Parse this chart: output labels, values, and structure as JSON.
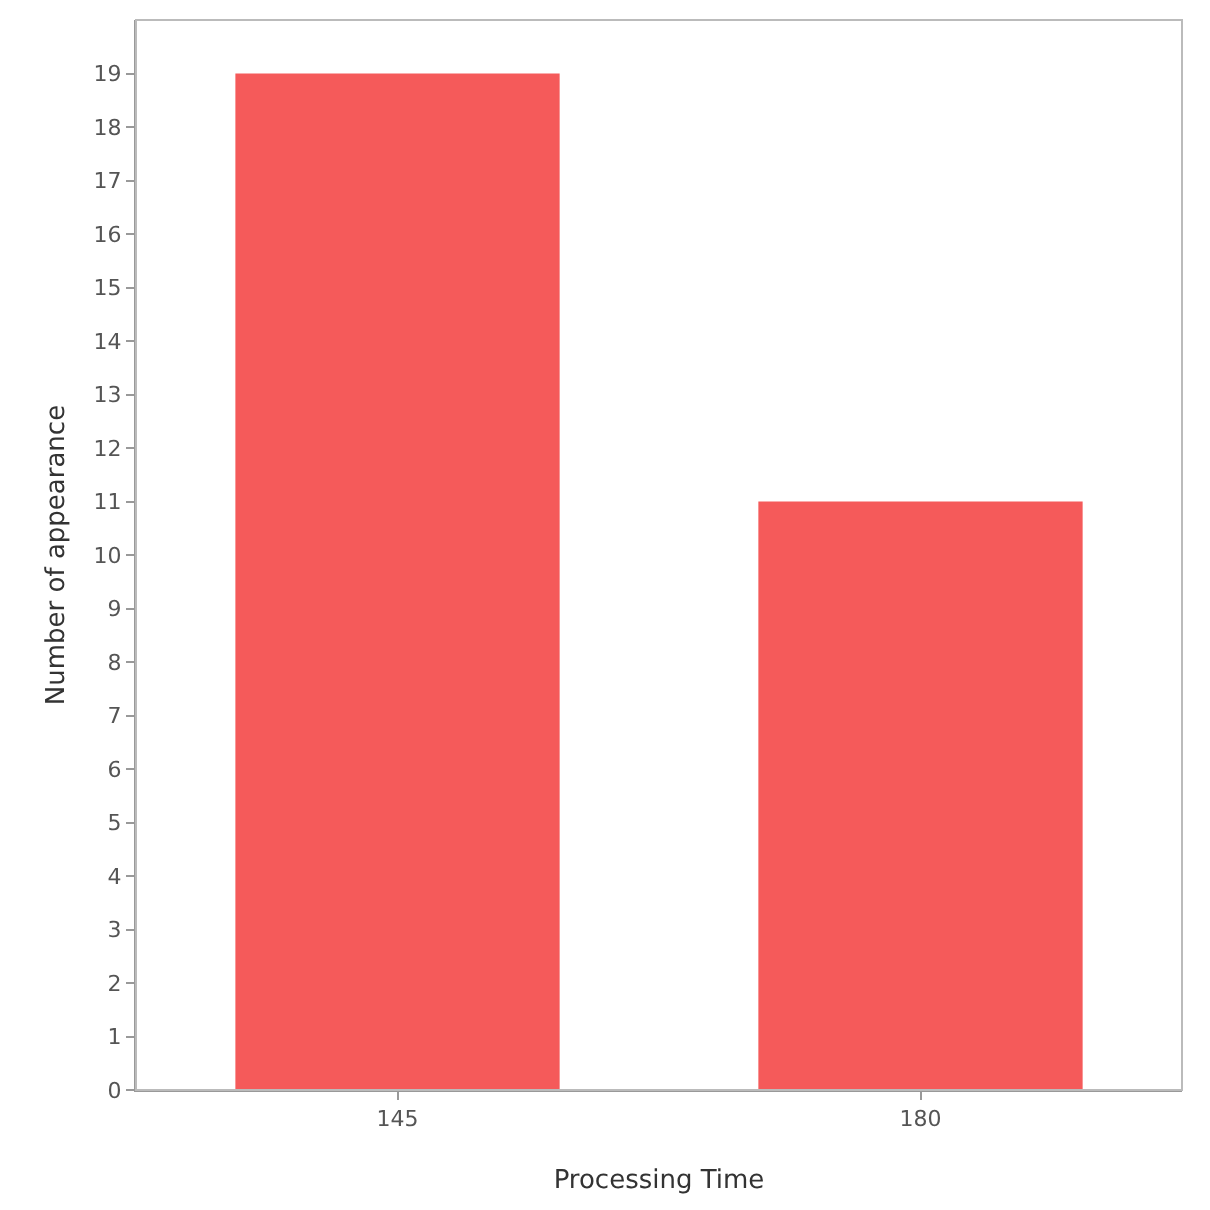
{
  "chart_data": {
    "type": "bar",
    "xlabel": "Processing Time",
    "ylabel": "Number of appearance",
    "categories": [
      "145",
      "180"
    ],
    "values": [
      19,
      11
    ],
    "color": "#f55a5a",
    "ylim": [
      0,
      20
    ],
    "yticks": [
      0,
      1,
      2,
      3,
      4,
      5,
      6,
      7,
      8,
      9,
      10,
      11,
      12,
      13,
      14,
      15,
      16,
      17,
      18,
      19
    ],
    "grid": false
  }
}
